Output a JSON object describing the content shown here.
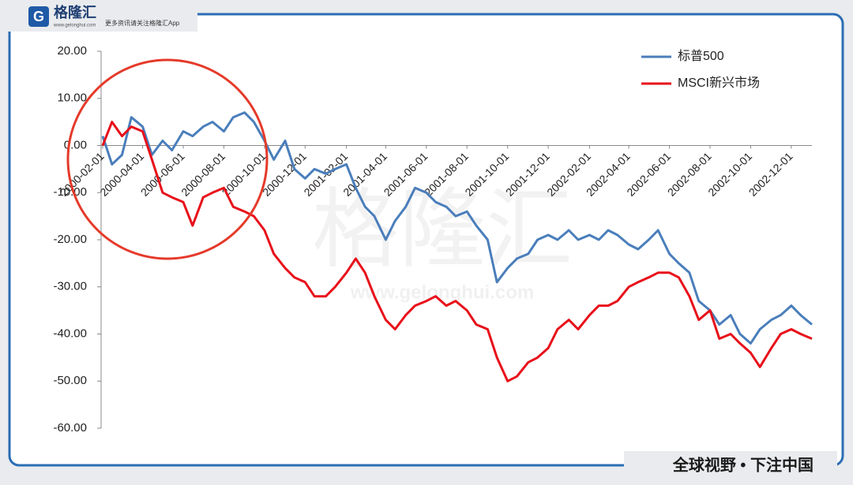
{
  "header": {
    "logo": "格隆汇",
    "url": "www.gelonghui.com",
    "slogan": "更多资讯请关注格隆汇App"
  },
  "watermark": {
    "logo": "格隆汇",
    "url": "www.gelonghui.com"
  },
  "footer": "全球视野 • 下注中国",
  "chart_data": {
    "type": "line",
    "x": [
      "2000-02-01",
      "2000-02-15",
      "2000-03-01",
      "2000-03-15",
      "2000-04-01",
      "2000-04-15",
      "2000-05-01",
      "2000-05-15",
      "2000-06-01",
      "2000-06-15",
      "2000-07-01",
      "2000-07-15",
      "2000-08-01",
      "2000-08-15",
      "2000-09-01",
      "2000-09-15",
      "2000-10-01",
      "2000-10-15",
      "2000-11-01",
      "2000-11-15",
      "2000-12-01",
      "2000-12-15",
      "2001-01-01",
      "2001-01-15",
      "2001-02-01",
      "2001-02-15",
      "2001-03-01",
      "2001-03-15",
      "2001-04-01",
      "2001-04-15",
      "2001-05-01",
      "2001-05-15",
      "2001-06-01",
      "2001-06-15",
      "2001-07-01",
      "2001-07-15",
      "2001-08-01",
      "2001-08-15",
      "2001-09-01",
      "2001-09-15",
      "2001-10-01",
      "2001-10-15",
      "2001-11-01",
      "2001-11-15",
      "2001-12-01",
      "2001-12-15",
      "2002-01-01",
      "2002-01-15",
      "2002-02-01",
      "2002-02-15",
      "2002-03-01",
      "2002-03-15",
      "2002-04-01",
      "2002-04-15",
      "2002-05-01",
      "2002-05-15",
      "2002-06-01",
      "2002-06-15",
      "2002-07-01",
      "2002-07-15",
      "2002-08-01",
      "2002-08-15",
      "2002-09-01",
      "2002-09-15",
      "2002-10-01",
      "2002-10-15",
      "2002-11-01",
      "2002-11-15",
      "2002-12-01",
      "2002-12-15",
      "2003-01-01"
    ],
    "series": [
      {
        "name": "标普500",
        "color": "#4a7ebb",
        "values": [
          2,
          -4,
          -2,
          6,
          4,
          -2,
          1,
          -1,
          3,
          2,
          4,
          5,
          3,
          6,
          7,
          5,
          1,
          -3,
          1,
          -5,
          -7,
          -5,
          -6,
          -5,
          -4,
          -9,
          -13,
          -15,
          -20,
          -16,
          -13,
          -9,
          -10,
          -12,
          -13,
          -15,
          -14,
          -17,
          -20,
          -29,
          -26,
          -24,
          -23,
          -20,
          -19,
          -20,
          -18,
          -20,
          -19,
          -20,
          -18,
          -19,
          -21,
          -22,
          -20,
          -18,
          -23,
          -25,
          -27,
          -33,
          -35,
          -38,
          -36,
          -40,
          -42,
          -39,
          -37,
          -36,
          -34,
          -36,
          -38
        ]
      },
      {
        "name": "MSCI新兴市场",
        "color": "#e8101a",
        "values": [
          0,
          5,
          2,
          4,
          3,
          -3,
          -10,
          -11,
          -12,
          -17,
          -11,
          -10,
          -9,
          -13,
          -14,
          -15,
          -18,
          -23,
          -26,
          -28,
          -29,
          -32,
          -32,
          -30,
          -27,
          -24,
          -27,
          -32,
          -37,
          -39,
          -36,
          -34,
          -33,
          -32,
          -34,
          -33,
          -35,
          -38,
          -39,
          -45,
          -50,
          -49,
          -46,
          -45,
          -43,
          -39,
          -37,
          -39,
          -36,
          -34,
          -34,
          -33,
          -30,
          -29,
          -28,
          -27,
          -27,
          -28,
          -32,
          -37,
          -35,
          -41,
          -40,
          -42,
          -44,
          -47,
          -43,
          -40,
          -39,
          -40,
          -41
        ]
      }
    ],
    "xlim": [
      "2000-02-01",
      "2003-01-01"
    ],
    "xticks": [
      "2000-02-01",
      "2000-04-01",
      "2000-06-01",
      "2000-08-01",
      "2000-10-01",
      "2000-12-01",
      "2001-02-01",
      "2001-04-01",
      "2001-06-01",
      "2001-08-01",
      "2001-10-01",
      "2001-12-01",
      "2002-02-01",
      "2002-04-01",
      "2002-06-01",
      "2002-08-01",
      "2002-10-01",
      "2002-12-01"
    ],
    "ylim": [
      -60,
      20
    ],
    "yticks": [
      {
        "value": -60,
        "label": "-60.00"
      },
      {
        "value": -50,
        "label": "-50.00"
      },
      {
        "value": -40,
        "label": "-40.00"
      },
      {
        "value": -30,
        "label": "-30.00"
      },
      {
        "value": -20,
        "label": "-20.00"
      },
      {
        "value": -10,
        "label": "-10.00"
      },
      {
        "value": 0,
        "label": "0.00"
      },
      {
        "value": 10,
        "label": "10.00"
      },
      {
        "value": 20,
        "label": "20.00"
      }
    ],
    "legend": "top-right"
  }
}
